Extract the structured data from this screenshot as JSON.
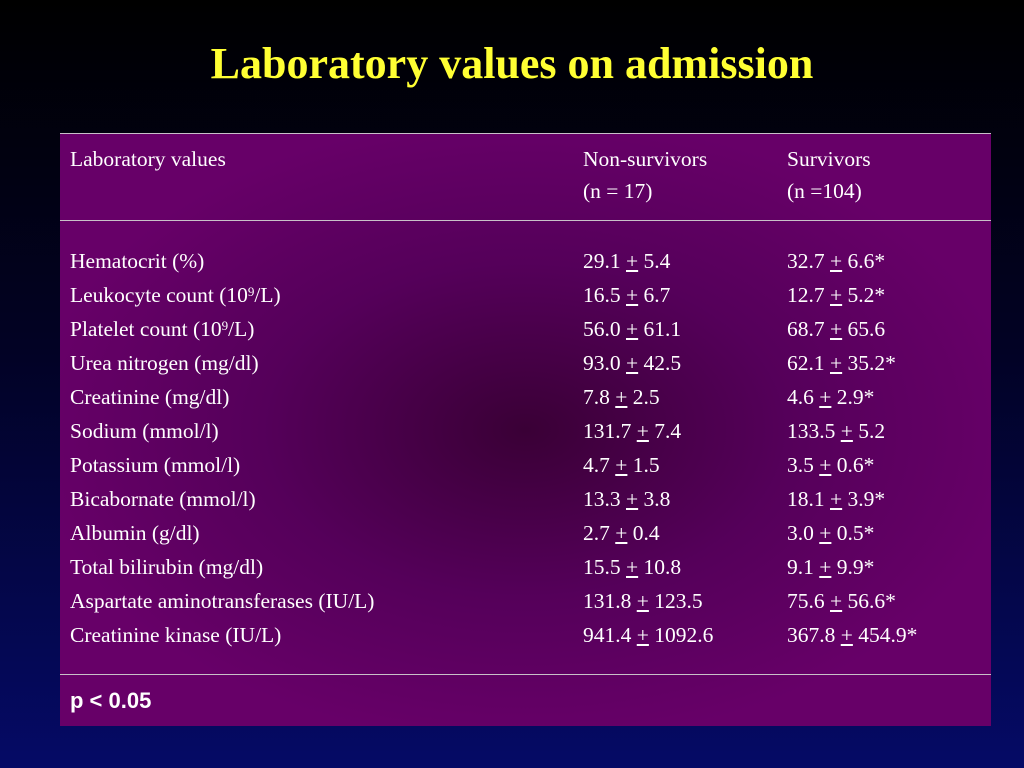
{
  "title": "Laboratory values on admission",
  "table": {
    "headers": {
      "label": "Laboratory values",
      "non_survivors": "Non-survivors",
      "non_survivors_n": "(n = 17)",
      "survivors": "Survivors",
      "survivors_n": "(n =104)"
    },
    "plus_minus": "+",
    "rows": [
      {
        "label": "Hematocrit (%)",
        "non_mean": "29.1",
        "non_sd": "5.4",
        "surv_mean": "32.7",
        "surv_sd": "6.6*"
      },
      {
        "label_pre": "Leukocyte count (10",
        "label_sup": "9",
        "label_post": "/L)",
        "non_mean": "16.5",
        "non_sd": "6.7",
        "surv_mean": "12.7",
        "surv_sd": "5.2*"
      },
      {
        "label_pre": "Platelet count (10",
        "label_sup": "9",
        "label_post": "/L)",
        "non_mean": "56.0",
        "non_sd": "61.1",
        "surv_mean": "68.7",
        "surv_sd": "65.6"
      },
      {
        "label": "Urea nitrogen (mg/dl)",
        "non_mean": "93.0",
        "non_sd": "42.5",
        "surv_mean": "62.1",
        "surv_sd": "35.2*"
      },
      {
        "label": "Creatinine (mg/dl)",
        "non_mean": "7.8",
        "non_sd": "2.5",
        "surv_mean": "4.6",
        "surv_sd": "2.9*"
      },
      {
        "label": "Sodium (mmol/l)",
        "non_mean": "131.7",
        "non_sd": "7.4",
        "surv_mean": "133.5",
        "surv_sd": "5.2"
      },
      {
        "label": "Potassium (mmol/l)",
        "non_mean": "4.7",
        "non_sd": "1.5",
        "surv_mean": "3.5",
        "surv_sd": "0.6*"
      },
      {
        "label": "Bicabornate (mmol/l)",
        "non_mean": "13.3",
        "non_sd": "3.8",
        "surv_mean": "18.1",
        "surv_sd": "3.9*"
      },
      {
        "label": "Albumin (g/dl)",
        "non_mean": "2.7",
        "non_sd": "0.4",
        "surv_mean": "3.0",
        "surv_sd": "0.5*"
      },
      {
        "label": "Total bilirubin (mg/dl)",
        "non_mean": "15.5",
        "non_sd": "10.8",
        "surv_mean": "9.1",
        "surv_sd": "9.9*"
      },
      {
        "label": "Aspartate aminotransferases (IU/L)",
        "non_mean": "131.8",
        "non_sd": "123.5",
        "surv_mean": "75.6",
        "surv_sd": "56.6*"
      },
      {
        "label": "Creatinine kinase (IU/L)",
        "non_mean": "941.4",
        "non_sd": "1092.6",
        "surv_mean": "367.8",
        "surv_sd": "454.9*"
      }
    ],
    "footnote": "p < 0.05"
  },
  "colors": {
    "title": "#ffff33",
    "panel": "#670068",
    "background_top": "#000000",
    "background_bottom": "#050a66",
    "text": "#ffffff"
  }
}
